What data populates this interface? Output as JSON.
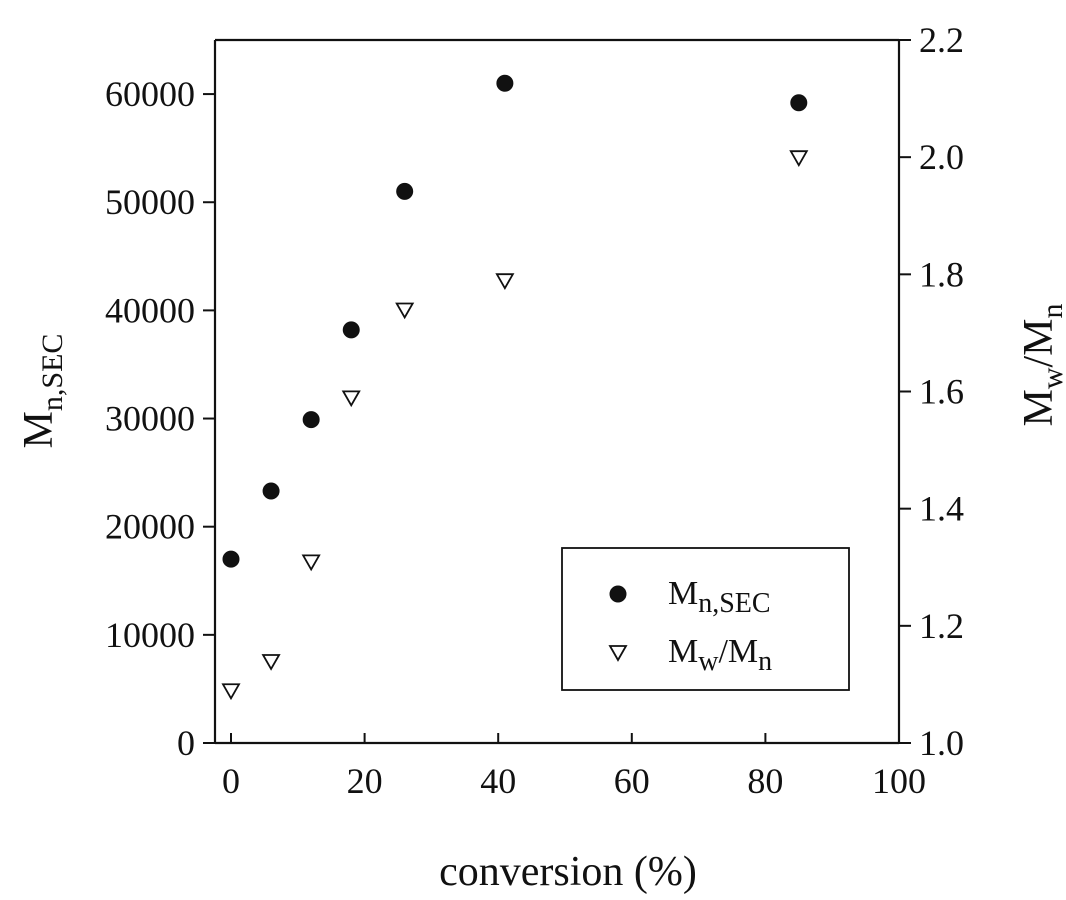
{
  "chart_data": {
    "type": "scatter",
    "xlabel": "conversion (%)",
    "ylabel_left": {
      "main": "M",
      "sub": "n,SEC"
    },
    "ylabel_right": {
      "m1": "M",
      "s1": "w",
      "slash": "/M",
      "s2": "n"
    },
    "xlim": [
      0,
      100
    ],
    "ylim_left": [
      0,
      65000
    ],
    "ylim_right": [
      1.0,
      2.2
    ],
    "x_ticks": [
      "0",
      "20",
      "40",
      "60",
      "80",
      "100"
    ],
    "y_left_ticks": [
      "0",
      "10000",
      "20000",
      "30000",
      "40000",
      "50000",
      "60000"
    ],
    "y_right_ticks": [
      "1.0",
      "1.2",
      "1.4",
      "1.6",
      "1.8",
      "2.0",
      "2.2"
    ],
    "legend_position": "bottom-right",
    "series": [
      {
        "name": {
          "main": "M",
          "sub": "n,SEC"
        },
        "marker": "filled-circle",
        "axis": "left",
        "x": [
          0,
          6,
          12,
          18,
          26,
          41,
          85
        ],
        "y": [
          17000,
          23300,
          29900,
          38200,
          51000,
          61000,
          59200
        ]
      },
      {
        "name": {
          "m1": "M",
          "s1": "w",
          "slash": "/M",
          "s2": "n"
        },
        "marker": "open-triangle-down",
        "axis": "right",
        "x": [
          0,
          6,
          12,
          18,
          26,
          41,
          85
        ],
        "y": [
          1.09,
          1.14,
          1.31,
          1.59,
          1.74,
          1.79,
          2.0
        ]
      }
    ]
  }
}
